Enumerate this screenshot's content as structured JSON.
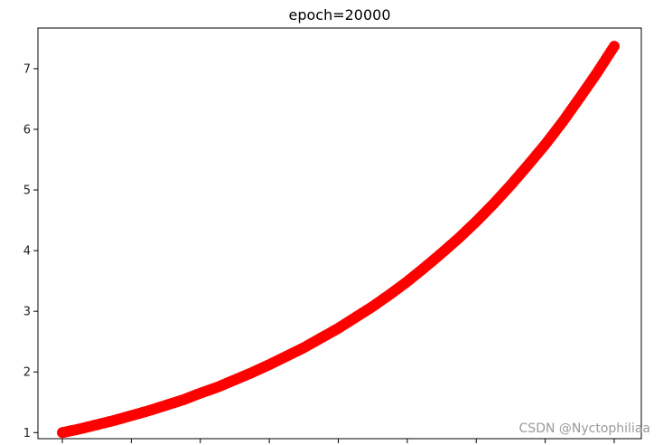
{
  "chart_data": {
    "type": "scatter",
    "title": "epoch=20000",
    "xlabel": "",
    "ylabel": "",
    "x_tick_count": 9,
    "xlim": [
      0,
      8
    ],
    "ylim": [
      0.9,
      7.67
    ],
    "yticks": [
      1,
      2,
      3,
      4,
      5,
      6,
      7
    ],
    "grid": false,
    "marker_color": "#ff0000",
    "series": [
      {
        "x": [
          0.0,
          0.25,
          0.5,
          0.75,
          1.0,
          1.25,
          1.5,
          1.75,
          2.0,
          2.25,
          2.5,
          2.75,
          3.0,
          3.25,
          3.5,
          3.75,
          4.0,
          4.25,
          4.5,
          4.75,
          5.0,
          5.25,
          5.5,
          5.75,
          6.0,
          6.25,
          6.5,
          6.75,
          7.0,
          7.25,
          7.5,
          7.75,
          8.0
        ],
        "y": [
          1.0,
          1.06,
          1.13,
          1.2,
          1.28,
          1.36,
          1.45,
          1.54,
          1.65,
          1.75,
          1.87,
          1.99,
          2.12,
          2.26,
          2.4,
          2.56,
          2.72,
          2.9,
          3.08,
          3.28,
          3.49,
          3.72,
          3.96,
          4.21,
          4.48,
          4.77,
          5.08,
          5.41,
          5.75,
          6.12,
          6.52,
          6.93,
          7.37
        ]
      }
    ]
  },
  "watermark": "CSDN @Nyctophiliaa"
}
